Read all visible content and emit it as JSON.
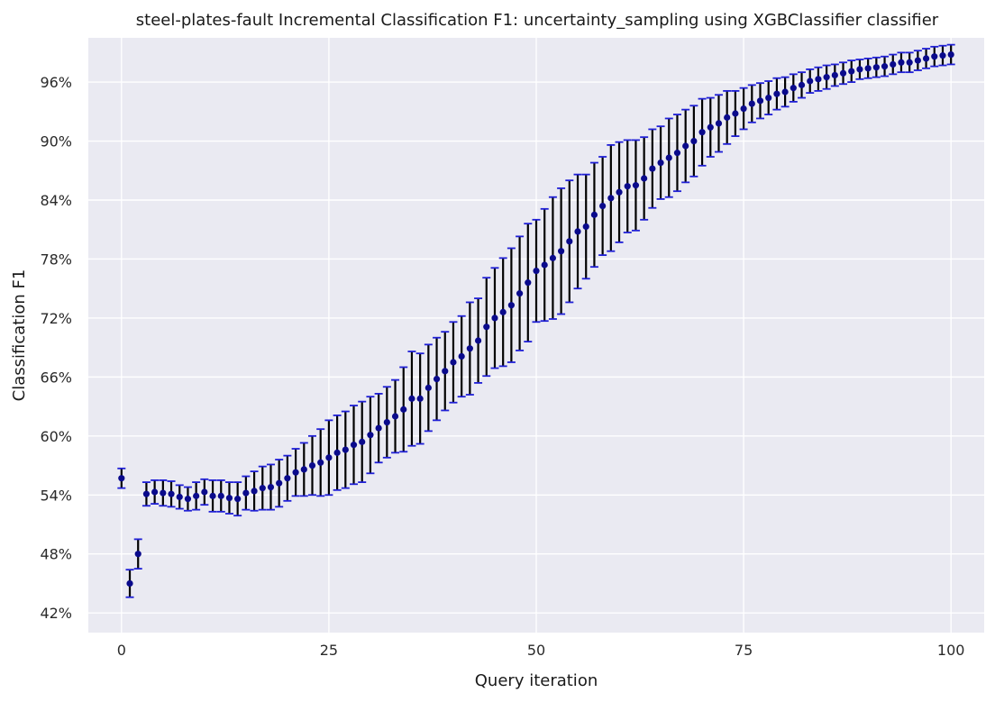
{
  "chart_data": {
    "type": "scatter",
    "title": "steel-plates-fault Incremental Classification F1: uncertainty_sampling using XGBClassifier classifier",
    "xlabel": "Query iteration",
    "ylabel": "Classification F1",
    "xlim": [
      -4,
      104
    ],
    "ylim": [
      0.4,
      1.005
    ],
    "xticks": [
      0,
      25,
      50,
      75,
      100
    ],
    "yticks": [
      0.42,
      0.48,
      0.54,
      0.6,
      0.66,
      0.72,
      0.78,
      0.84,
      0.9,
      0.96
    ],
    "ytick_labels": [
      "42%",
      "48%",
      "54%",
      "60%",
      "66%",
      "72%",
      "78%",
      "84%",
      "90%",
      "96%"
    ],
    "grid": true,
    "colors": {
      "background": "#eaeaf2",
      "grid": "#ffffff",
      "marker": "#0a0a8c",
      "errorbar": "#000000",
      "cap": "#1f1fd6"
    },
    "series": [
      {
        "x": [
          0,
          1,
          2,
          3,
          4,
          5,
          6,
          7,
          8,
          9,
          10,
          11,
          12,
          13,
          14,
          15,
          16,
          17,
          18,
          19,
          20,
          21,
          22,
          23,
          24,
          25,
          26,
          27,
          28,
          29,
          30,
          31,
          32,
          33,
          34,
          35,
          36,
          37,
          38,
          39,
          40,
          41,
          42,
          43,
          44,
          45,
          46,
          47,
          48,
          49,
          50,
          51,
          52,
          53,
          54,
          55,
          56,
          57,
          58,
          59,
          60,
          61,
          62,
          63,
          64,
          65,
          66,
          67,
          68,
          69,
          70,
          71,
          72,
          73,
          74,
          75,
          76,
          77,
          78,
          79,
          80,
          81,
          82,
          83,
          84,
          85,
          86,
          87,
          88,
          89,
          90,
          91,
          92,
          93,
          94,
          95,
          96,
          97,
          98,
          99,
          100
        ],
        "y": [
          0.557,
          0.45,
          0.48,
          0.541,
          0.543,
          0.542,
          0.541,
          0.538,
          0.536,
          0.539,
          0.543,
          0.539,
          0.539,
          0.537,
          0.536,
          0.542,
          0.544,
          0.547,
          0.548,
          0.552,
          0.557,
          0.563,
          0.566,
          0.57,
          0.573,
          0.578,
          0.583,
          0.586,
          0.591,
          0.594,
          0.601,
          0.608,
          0.614,
          0.62,
          0.627,
          0.638,
          0.638,
          0.649,
          0.658,
          0.666,
          0.675,
          0.681,
          0.689,
          0.697,
          0.711,
          0.72,
          0.726,
          0.733,
          0.745,
          0.756,
          0.768,
          0.774,
          0.781,
          0.788,
          0.798,
          0.808,
          0.813,
          0.825,
          0.834,
          0.842,
          0.848,
          0.854,
          0.855,
          0.862,
          0.872,
          0.878,
          0.883,
          0.888,
          0.895,
          0.9,
          0.909,
          0.914,
          0.918,
          0.924,
          0.928,
          0.933,
          0.938,
          0.941,
          0.944,
          0.948,
          0.95,
          0.954,
          0.957,
          0.961,
          0.963,
          0.965,
          0.967,
          0.969,
          0.971,
          0.973,
          0.974,
          0.975,
          0.976,
          0.978,
          0.98,
          0.98,
          0.982,
          0.984,
          0.986,
          0.987,
          0.988
        ],
        "err": [
          0.01,
          0.014,
          0.015,
          0.012,
          0.012,
          0.013,
          0.013,
          0.012,
          0.012,
          0.014,
          0.013,
          0.016,
          0.016,
          0.016,
          0.017,
          0.017,
          0.02,
          0.022,
          0.023,
          0.024,
          0.023,
          0.024,
          0.027,
          0.03,
          0.034,
          0.038,
          0.038,
          0.039,
          0.04,
          0.041,
          0.039,
          0.035,
          0.036,
          0.037,
          0.043,
          0.048,
          0.046,
          0.044,
          0.042,
          0.04,
          0.041,
          0.041,
          0.047,
          0.043,
          0.05,
          0.051,
          0.055,
          0.058,
          0.058,
          0.06,
          0.052,
          0.057,
          0.062,
          0.064,
          0.062,
          0.058,
          0.053,
          0.053,
          0.05,
          0.054,
          0.051,
          0.047,
          0.046,
          0.042,
          0.04,
          0.037,
          0.04,
          0.039,
          0.037,
          0.036,
          0.034,
          0.03,
          0.029,
          0.027,
          0.023,
          0.021,
          0.019,
          0.018,
          0.017,
          0.016,
          0.015,
          0.014,
          0.013,
          0.012,
          0.012,
          0.012,
          0.011,
          0.011,
          0.011,
          0.01,
          0.01,
          0.01,
          0.01,
          0.01,
          0.01,
          0.01,
          0.01,
          0.01,
          0.01,
          0.01,
          0.01
        ]
      }
    ]
  }
}
